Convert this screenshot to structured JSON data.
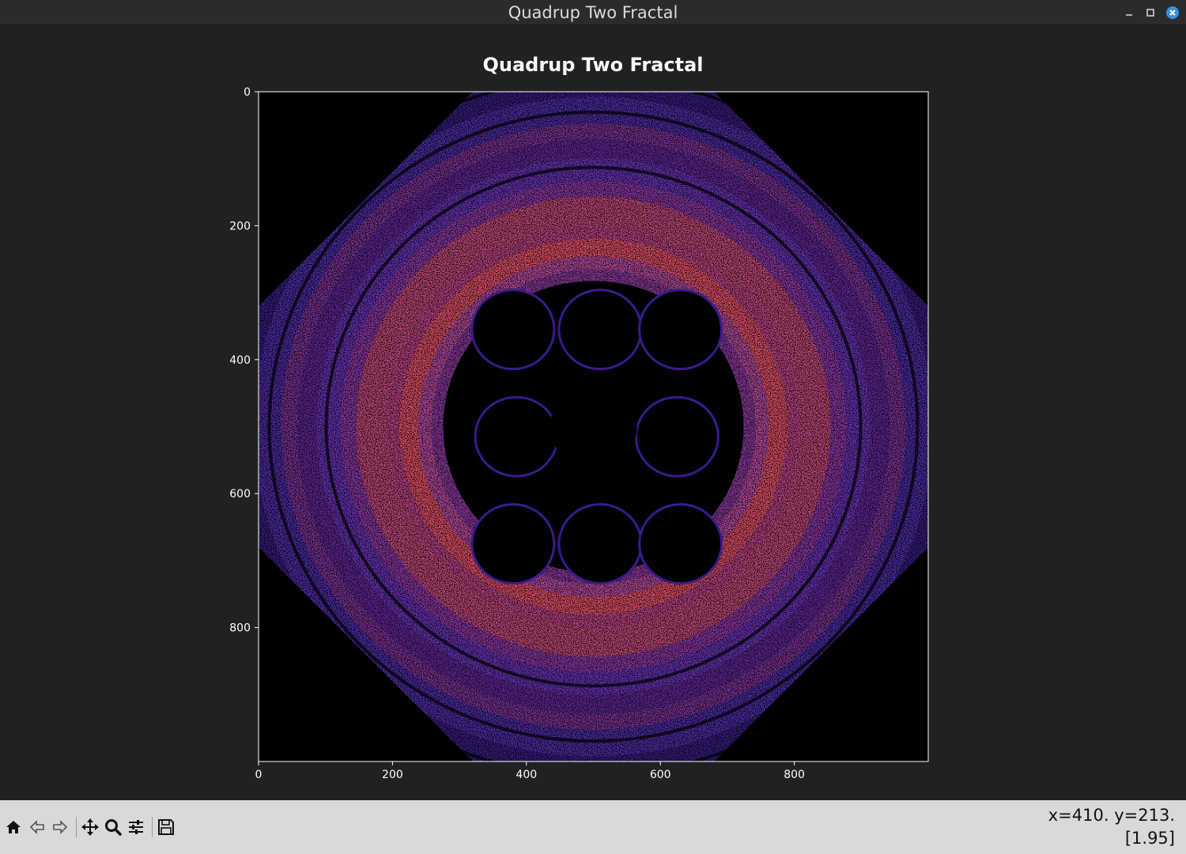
{
  "window": {
    "title": "Quadrup Two Fractal",
    "controls": [
      "minimize-icon",
      "maximize-icon",
      "close-icon"
    ]
  },
  "figure": {
    "title": "Quadrup Two Fractal",
    "background_color": "#212121"
  },
  "chart_data": {
    "type": "heatmap",
    "title": "Quadrup Two Fractal",
    "xlabel": "",
    "ylabel": "",
    "xlim": [
      0,
      1000
    ],
    "ylim": [
      1000,
      0
    ],
    "x_ticks": [
      "0",
      "200",
      "400",
      "600",
      "800"
    ],
    "y_ticks": [
      "0",
      "200",
      "400",
      "600",
      "800"
    ],
    "colormap": [
      "#000000",
      "#3a1a8c",
      "#6a3fd0",
      "#b03a7a",
      "#ff5a2a",
      "#ffd070"
    ],
    "image_shape": [
      1000,
      1000
    ]
  },
  "toolbar": {
    "tools": [
      {
        "name": "home-icon",
        "tooltip": "Reset original view"
      },
      {
        "name": "back-arrow-icon",
        "tooltip": "Back"
      },
      {
        "name": "forward-arrow-icon",
        "tooltip": "Forward"
      },
      {
        "name": "pan-icon",
        "tooltip": "Pan"
      },
      {
        "name": "zoom-icon",
        "tooltip": "Zoom"
      },
      {
        "name": "configure-subplots-icon",
        "tooltip": "Configure subplots"
      },
      {
        "name": "save-icon",
        "tooltip": "Save"
      }
    ],
    "status_line1": "x=410. y=213.",
    "status_line2": "[1.95]"
  }
}
